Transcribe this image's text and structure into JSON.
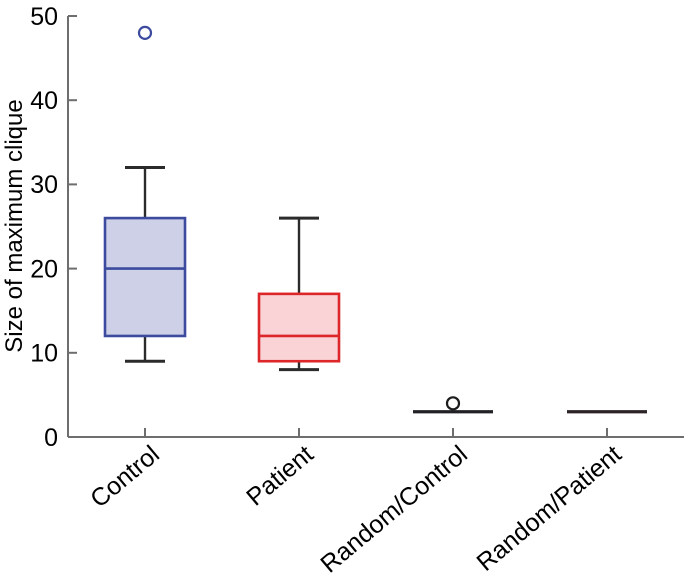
{
  "figure": {
    "background": "#ffffff",
    "axis_color": "#6e6e6e",
    "whisker_color": "#2b2b2b",
    "text_color": "#000000"
  },
  "chart_data": {
    "type": "boxplot",
    "title": "",
    "xlabel": "",
    "ylabel": "Size of maximum clique",
    "ylim": [
      0,
      50
    ],
    "yticks": [
      0,
      10,
      20,
      30,
      40,
      50
    ],
    "grid": false,
    "legend": "none",
    "categories": [
      "Control",
      "Patient",
      "Random/Control",
      "Random/Patient"
    ],
    "boxes": [
      {
        "label": "Control",
        "whisker_low": 9,
        "q1": 12,
        "median": 20,
        "q3": 26,
        "whisker_high": 32,
        "outliers": [
          48
        ],
        "fill": "#cdd0e7",
        "edge": "#3c4b9e",
        "outlier_color": "#3c4b9e"
      },
      {
        "label": "Patient",
        "whisker_low": 8,
        "q1": 9,
        "median": 12,
        "q3": 17,
        "whisker_high": 26,
        "outliers": [],
        "fill": "#f9d3d6",
        "edge": "#dd2629",
        "outlier_color": "#dd2629"
      },
      {
        "label": "Random/Control",
        "whisker_low": 3,
        "q1": 3,
        "median": 3,
        "q3": 3,
        "whisker_high": 3,
        "outliers": [
          4
        ],
        "fill": "none",
        "edge": "#222226",
        "outlier_color": "#1c1c1c"
      },
      {
        "label": "Random/Patient",
        "whisker_low": 3,
        "q1": 3,
        "median": 3,
        "q3": 3,
        "whisker_high": 3,
        "outliers": [],
        "fill": "none",
        "edge": "#2b2326",
        "outlier_color": "#1c1c1c"
      }
    ]
  }
}
